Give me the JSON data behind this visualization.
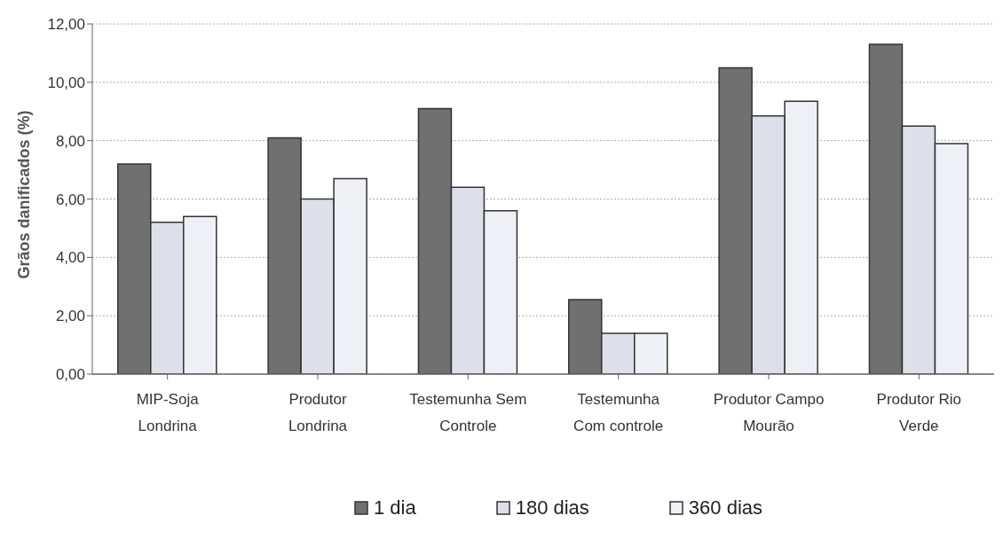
{
  "chart_data": {
    "type": "bar",
    "ylabel": "Grãos danificados (%)",
    "categories": [
      "MIP-Soja Londrina",
      "Produtor Londrina",
      "Testemunha Sem Controle",
      "Testemunha Com controle",
      "Produtor Campo Mourão",
      "Produtor Rio Verde"
    ],
    "series": [
      {
        "name": "1 dia",
        "color": "#707070",
        "values": [
          7.2,
          8.1,
          9.1,
          2.55,
          10.5,
          11.3
        ]
      },
      {
        "name": "180 dias",
        "color": "#dde0e8",
        "values": [
          5.2,
          6.0,
          6.4,
          1.4,
          8.85,
          8.5
        ]
      },
      {
        "name": "360 dias",
        "color": "#eef0f5",
        "values": [
          5.4,
          6.7,
          5.6,
          1.4,
          9.35,
          7.9
        ]
      }
    ],
    "ylim": [
      0,
      12
    ],
    "yticks": [
      {
        "value": 0,
        "label": "0,00"
      },
      {
        "value": 2,
        "label": "2,00"
      },
      {
        "value": 4,
        "label": "4,00"
      },
      {
        "value": 6,
        "label": "6,00"
      },
      {
        "value": 8,
        "label": "8,00"
      },
      {
        "value": 10,
        "label": "10,00"
      },
      {
        "value": 12,
        "label": "12,00"
      }
    ],
    "grid": "y",
    "legend": "bottom"
  }
}
